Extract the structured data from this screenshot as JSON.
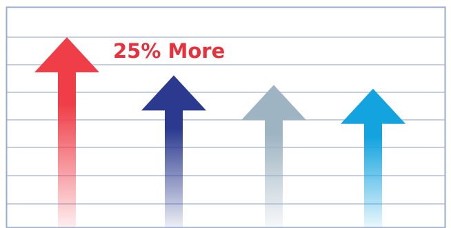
{
  "chart_data": {
    "type": "bar",
    "title": "",
    "xlabel": "",
    "ylabel": "",
    "categories": [
      "",
      "",
      "",
      ""
    ],
    "values": [
      100,
      80,
      75,
      73
    ],
    "ylim": [
      0,
      100
    ],
    "grid": true,
    "annotations": [
      {
        "text": "25% More",
        "color": "#e5323c"
      }
    ],
    "series_colors": [
      "#ef3e48",
      "#2b3a8f",
      "#9fb4c2",
      "#13a4df"
    ]
  },
  "colors": {
    "frame": "#9aaad0",
    "gridline": "#c3cde3",
    "background": "#ffffff"
  }
}
